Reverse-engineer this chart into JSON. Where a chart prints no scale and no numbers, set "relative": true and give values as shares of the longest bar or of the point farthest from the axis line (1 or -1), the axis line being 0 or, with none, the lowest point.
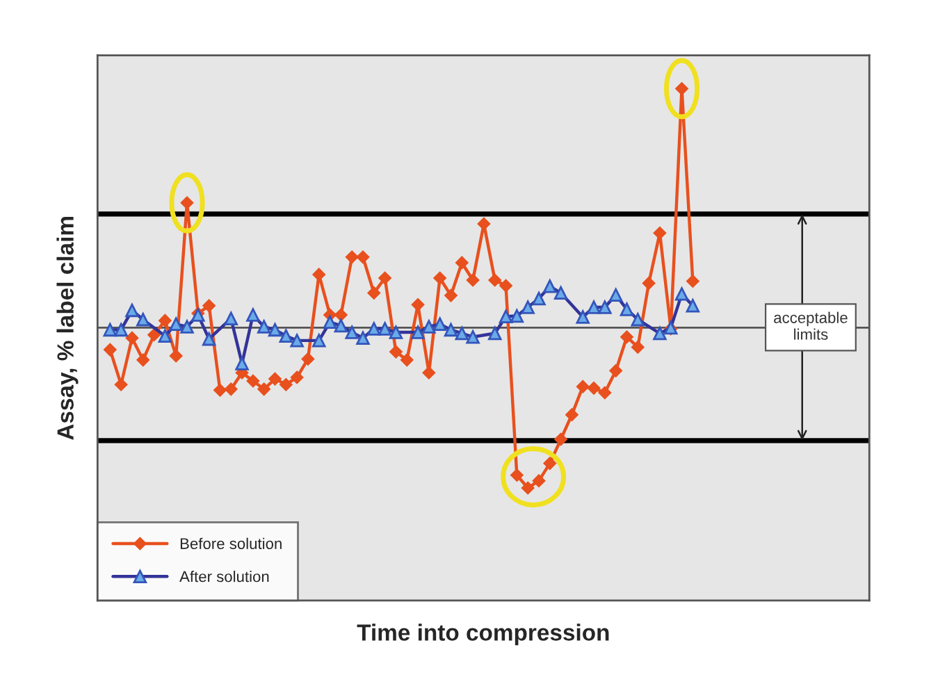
{
  "chart_data": {
    "type": "line",
    "xlabel": "Time into compression",
    "ylabel": "Assay, % label claim",
    "relative": true,
    "tick_labels": false,
    "legend": "bottom left",
    "grid": false,
    "line_style": "solid",
    "categories": [
      null,
      null,
      null,
      null,
      null,
      null,
      null,
      null,
      null,
      null,
      null,
      null,
      null,
      null,
      null,
      null,
      null,
      null,
      null,
      null,
      null,
      null,
      null,
      null,
      null,
      null,
      null,
      null,
      null,
      null,
      null,
      null,
      null,
      null,
      null,
      null,
      null,
      null,
      null,
      null,
      null,
      null,
      null,
      null,
      null,
      null,
      null,
      null,
      null,
      null,
      null,
      null,
      null,
      null
    ],
    "series": [
      {
        "name": "Before solution",
        "color": "#e8501e",
        "marker": "diamond",
        "values": [
          0.49,
          0.422,
          0.513,
          0.47,
          0.519,
          0.547,
          0.478,
          0.777,
          0.561,
          0.576,
          0.411,
          0.413,
          0.445,
          0.429,
          0.413,
          0.433,
          0.422,
          0.436,
          0.472,
          0.637,
          0.558,
          0.558,
          0.671,
          0.671,
          0.601,
          0.63,
          0.486,
          0.47,
          0.578,
          0.445,
          0.63,
          0.596,
          0.66,
          0.626,
          0.736,
          0.626,
          0.615,
          0.245,
          0.22,
          0.234,
          0.268,
          0.315,
          0.363,
          0.418,
          0.415,
          0.406,
          0.449,
          0.515,
          0.495,
          0.62,
          0.718,
          0.531,
          1.0,
          0.624
        ]
      },
      {
        "name": "After solution",
        "color": "#333399",
        "marker": "triangle",
        "values": [
          0.529,
          0.529,
          0.567,
          0.549,
          null,
          0.517,
          0.54,
          0.535,
          0.558,
          0.511,
          null,
          0.551,
          0.463,
          0.558,
          0.535,
          0.529,
          0.517,
          0.508,
          null,
          0.508,
          0.544,
          0.537,
          0.524,
          0.513,
          0.531,
          0.531,
          0.524,
          null,
          0.524,
          0.535,
          0.54,
          0.529,
          0.522,
          0.515,
          null,
          0.522,
          0.555,
          0.556,
          0.573,
          0.59,
          0.614,
          0.601,
          null,
          0.554,
          0.573,
          0.573,
          0.597,
          0.569,
          0.549,
          null,
          0.522,
          0.533,
          0.599,
          0.576
        ]
      }
    ],
    "ref_lines": [
      {
        "axis": "y",
        "value": 0.755,
        "color": "#000000"
      },
      {
        "axis": "y",
        "value": 0.533,
        "color": "#555555"
      },
      {
        "axis": "y",
        "value": 0.3125,
        "color": "#000000"
      }
    ],
    "annotations": [
      "acceptable\nlimits"
    ]
  }
}
